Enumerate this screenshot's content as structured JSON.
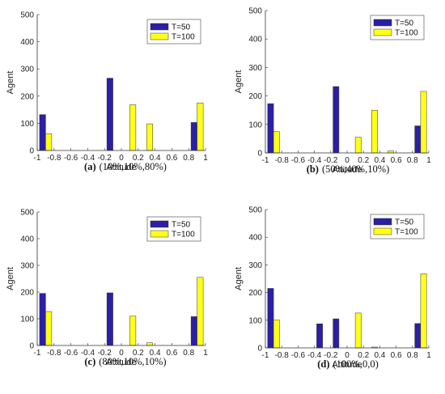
{
  "colors": {
    "T50": "#2b1fa6",
    "T100": "#ffff1a",
    "axis": "#333333"
  },
  "chart_data": [
    {
      "type": "bar",
      "caption_letter": "(a)",
      "caption_text": "(10%,10%,80%)",
      "xlabel": "Attitude",
      "ylabel": "Agent",
      "xlim": [
        -1,
        1
      ],
      "ylim": [
        0,
        500
      ],
      "xticks": [
        "-1",
        "-0.8",
        "-0.6",
        "-0.4",
        "-0.2",
        "0",
        "0.2",
        "0.4",
        "0.6",
        "0.8",
        "1"
      ],
      "yticks": [
        "0",
        "100",
        "200",
        "300",
        "400",
        "500"
      ],
      "legend_position": "top-right",
      "categories": [
        -0.9,
        -0.7,
        -0.5,
        -0.3,
        -0.1,
        0.1,
        0.3,
        0.5,
        0.7,
        0.9
      ],
      "series": [
        {
          "name": "T=50",
          "values": [
            132,
            0,
            0,
            0,
            266,
            0,
            0,
            0,
            0,
            103
          ]
        },
        {
          "name": "T=100",
          "values": [
            62,
            0,
            0,
            0,
            0,
            168,
            98,
            0,
            0,
            175
          ]
        }
      ]
    },
    {
      "type": "bar",
      "caption_letter": "(b)",
      "caption_text": "(50%,40%,10%)",
      "xlabel": "Attitude",
      "ylabel": "Agent",
      "xlim": [
        -1,
        1
      ],
      "ylim": [
        0,
        500
      ],
      "xticks": [
        "-1",
        "-0.8",
        "-0.6",
        "-0.4",
        "-0.2",
        "0",
        "0.2",
        "0.4",
        "0.6",
        "0.8",
        "1"
      ],
      "yticks": [
        "0",
        "100",
        "200",
        "300",
        "400",
        "500"
      ],
      "legend_position": "top-right",
      "categories": [
        -0.9,
        -0.7,
        -0.5,
        -0.3,
        -0.1,
        0.1,
        0.3,
        0.5,
        0.7,
        0.9
      ],
      "series": [
        {
          "name": "T=50",
          "values": [
            173,
            0,
            0,
            0,
            233,
            0,
            0,
            0,
            0,
            95
          ]
        },
        {
          "name": "T=100",
          "values": [
            75,
            0,
            0,
            0,
            0,
            55,
            150,
            7,
            0,
            216
          ]
        }
      ]
    },
    {
      "type": "bar",
      "caption_letter": "(c)",
      "caption_text": "(80%,10%,10%)",
      "xlabel": "Attitude",
      "ylabel": "Agent",
      "xlim": [
        -1,
        1
      ],
      "ylim": [
        0,
        500
      ],
      "xticks": [
        "-1",
        "-0.8",
        "-0.6",
        "-0.4",
        "-0.2",
        "0",
        "0.2",
        "0.4",
        "0.6",
        "0.8",
        "1"
      ],
      "yticks": [
        "0",
        "100",
        "200",
        "300",
        "400",
        "500"
      ],
      "legend_position": "top-right",
      "categories": [
        -0.9,
        -0.7,
        -0.5,
        -0.3,
        -0.1,
        0.1,
        0.3,
        0.5,
        0.7,
        0.9
      ],
      "series": [
        {
          "name": "T=50",
          "values": [
            195,
            0,
            0,
            0,
            197,
            0,
            0,
            0,
            0,
            108
          ]
        },
        {
          "name": "T=100",
          "values": [
            127,
            0,
            0,
            0,
            0,
            110,
            10,
            0,
            0,
            255
          ]
        }
      ]
    },
    {
      "type": "bar",
      "caption_letter": "(d)",
      "caption_text": "(100%,0,0)",
      "xlabel": "Attitude",
      "ylabel": "Agent",
      "xlim": [
        -1,
        1
      ],
      "ylim": [
        0,
        500
      ],
      "xticks": [
        "-1",
        "-0.8",
        "-0.6",
        "-0.4",
        "-0.2",
        "0",
        "0.2",
        "0.4",
        "0.6",
        "0.8",
        "1"
      ],
      "yticks": [
        "0",
        "100",
        "200",
        "300",
        "400",
        "500"
      ],
      "legend_position": "top-right",
      "categories": [
        -0.9,
        -0.7,
        -0.5,
        -0.3,
        -0.1,
        0.1,
        0.3,
        0.5,
        0.7,
        0.9
      ],
      "series": [
        {
          "name": "T=50",
          "values": [
            215,
            0,
            0,
            87,
            105,
            0,
            0,
            0,
            0,
            88
          ]
        },
        {
          "name": "T=100",
          "values": [
            101,
            0,
            0,
            0,
            0,
            126,
            3,
            0,
            0,
            268
          ]
        }
      ]
    }
  ]
}
